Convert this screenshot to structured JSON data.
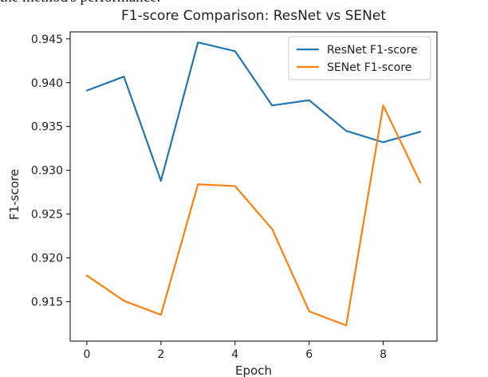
{
  "page": {
    "top_fragment": "the method's performance."
  },
  "chart_data": {
    "type": "line",
    "title": "F1-score Comparison: ResNet vs SENet",
    "xlabel": "Epoch",
    "ylabel": "F1-score",
    "x": [
      0,
      1,
      2,
      3,
      4,
      5,
      6,
      7,
      8,
      9
    ],
    "xlim": [
      -0.45,
      9.45
    ],
    "ylim": [
      0.9105,
      0.9458
    ],
    "xticks": [
      0,
      2,
      4,
      6,
      8
    ],
    "yticks": [
      0.915,
      0.92,
      0.925,
      0.93,
      0.935,
      0.94,
      0.945
    ],
    "ytick_labels": [
      "0.915",
      "0.920",
      "0.925",
      "0.930",
      "0.935",
      "0.940",
      "0.945"
    ],
    "grid": false,
    "legend_position": "top-right",
    "series": [
      {
        "name": "ResNet F1-score",
        "color": "#1f77b4",
        "values": [
          0.9391,
          0.9407,
          0.9288,
          0.9446,
          0.9436,
          0.9374,
          0.938,
          0.9345,
          0.9332,
          0.9344
        ]
      },
      {
        "name": "SENet F1-score",
        "color": "#ff7f0e",
        "values": [
          0.918,
          0.9151,
          0.9135,
          0.9284,
          0.9282,
          0.9233,
          0.9139,
          0.9123,
          0.9374,
          0.9286
        ]
      }
    ]
  }
}
